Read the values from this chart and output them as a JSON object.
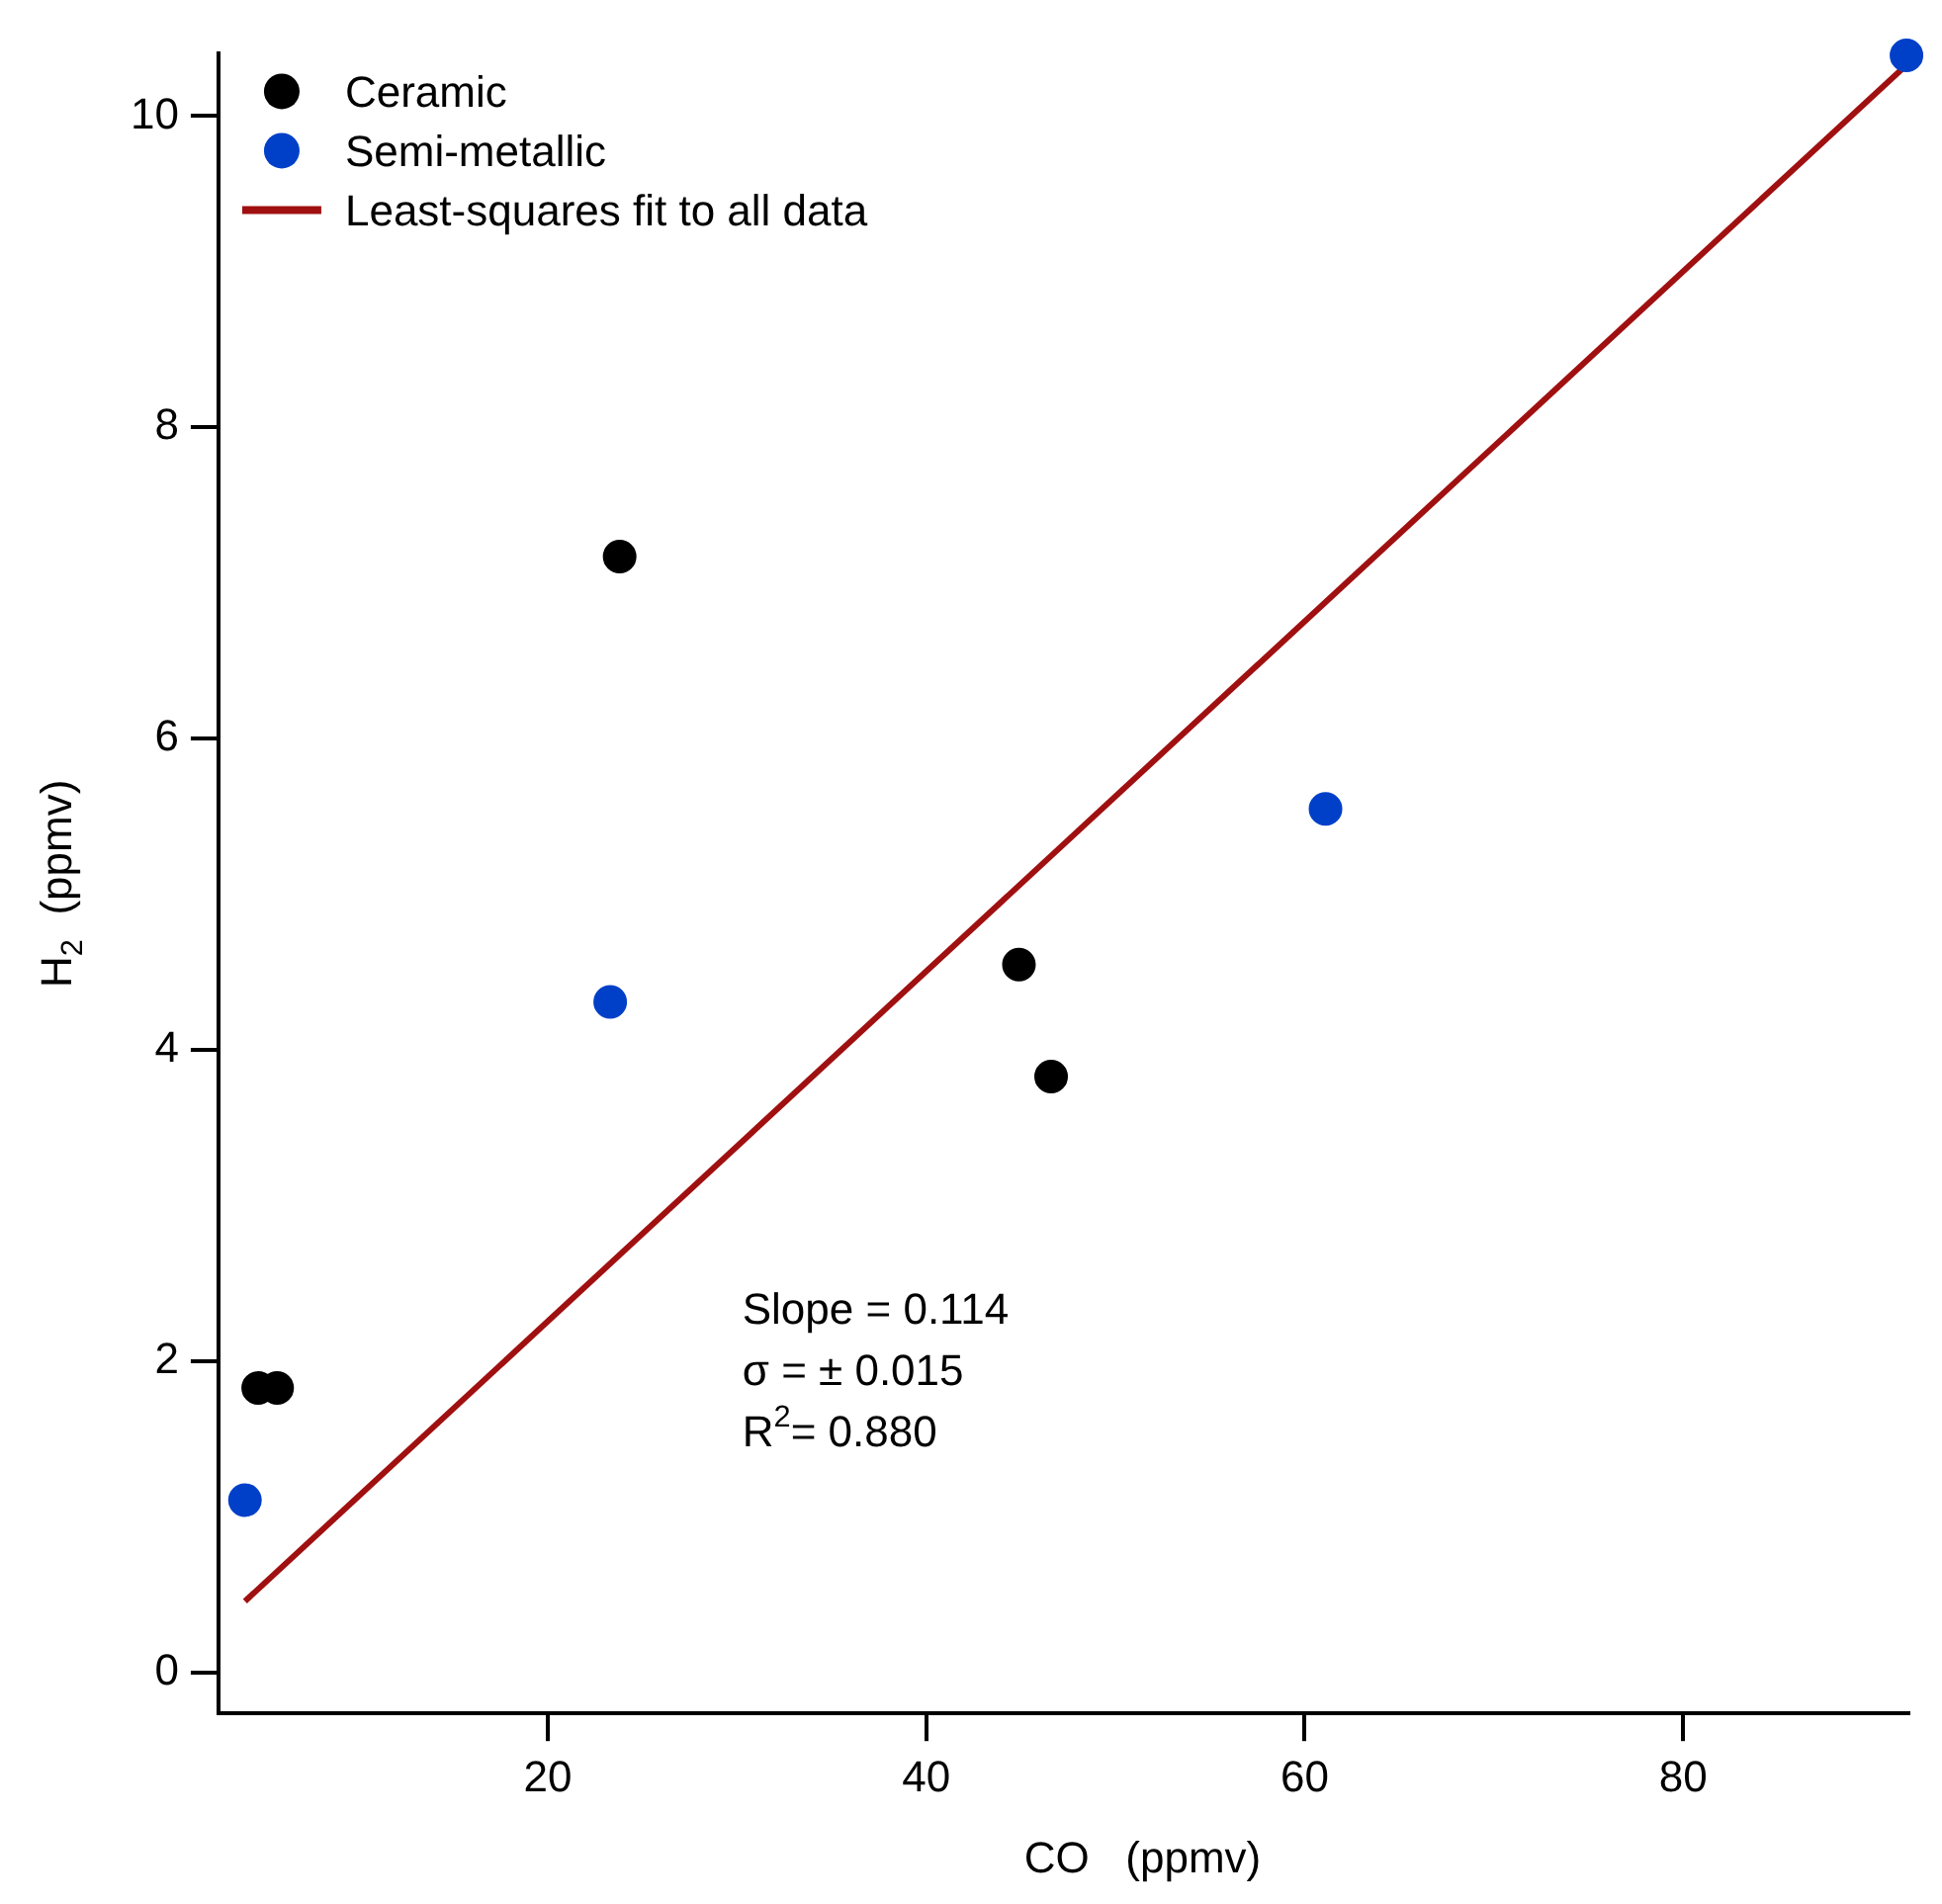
{
  "chart_data": {
    "type": "scatter",
    "xlabel": "CO   (ppmv)",
    "ylabel": "H$_{2}$  (ppmv)",
    "xlim": [
      2.6,
      91.9
    ],
    "ylim": [
      -0.26,
      10.4
    ],
    "xticks": [
      20,
      40,
      60,
      80
    ],
    "yticks": [
      0,
      2,
      4,
      6,
      8,
      10
    ],
    "grid": false,
    "legend": "top left",
    "series": [
      {
        "name": "Ceramic",
        "color": "#000000",
        "marker": "circle",
        "x": [
          4.7,
          5.7,
          23.8,
          44.9,
          46.6
        ],
        "values": [
          1.83,
          1.83,
          7.17,
          4.55,
          3.83
        ]
      },
      {
        "name": "Semi-metallic",
        "color": "#0040c8",
        "marker": "circle",
        "x": [
          4.0,
          23.3,
          61.1,
          91.8
        ],
        "values": [
          1.11,
          4.31,
          5.55,
          10.39
        ]
      },
      {
        "name": "Least-squares fit to all data",
        "type": "line",
        "color": "#a01010",
        "line_style": "solid",
        "marker": "none",
        "x": [
          4.0,
          91.9
        ],
        "values": [
          0.46,
          10.34
        ]
      }
    ],
    "annotations": [
      {
        "text": "Slope = 0.114"
      },
      {
        "text": "σ = ± 0.015"
      },
      {
        "text": "R$^{2}$= 0.880"
      }
    ]
  }
}
